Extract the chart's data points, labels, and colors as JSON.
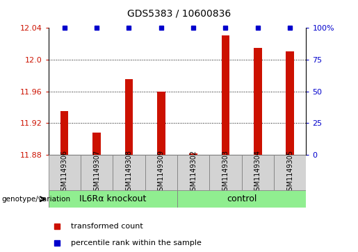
{
  "title": "GDS5383 / 10600836",
  "samples": [
    "GSM1149306",
    "GSM1149307",
    "GSM1149308",
    "GSM1149309",
    "GSM1149302",
    "GSM1149303",
    "GSM1149304",
    "GSM1149305"
  ],
  "red_values": [
    11.935,
    11.908,
    11.975,
    11.96,
    11.882,
    12.03,
    12.015,
    12.01
  ],
  "blue_values": [
    100,
    100,
    100,
    100,
    100,
    100,
    100,
    100
  ],
  "groups": [
    {
      "label": "IL6Rα knockout",
      "start": 0,
      "end": 3
    },
    {
      "label": "control",
      "start": 4,
      "end": 7
    }
  ],
  "ylim_left": [
    11.88,
    12.04
  ],
  "ylim_right": [
    0,
    100
  ],
  "yticks_left": [
    11.88,
    11.92,
    11.96,
    12.0,
    12.04
  ],
  "yticks_right": [
    0,
    25,
    50,
    75,
    100
  ],
  "ytick_labels_right": [
    "0",
    "25",
    "50",
    "75",
    "100%"
  ],
  "red_color": "#cc1100",
  "blue_color": "#0000cc",
  "bar_width": 0.25,
  "group_label_prefix": "genotype/variation",
  "legend_red": "transformed count",
  "legend_blue": "percentile rank within the sample",
  "grid_lines": [
    11.92,
    11.96,
    12.0
  ],
  "background_color": "#ffffff",
  "plot_bg_color": "#ffffff",
  "sample_box_color": "#d3d3d3",
  "group_bg_color": "#90ee90"
}
